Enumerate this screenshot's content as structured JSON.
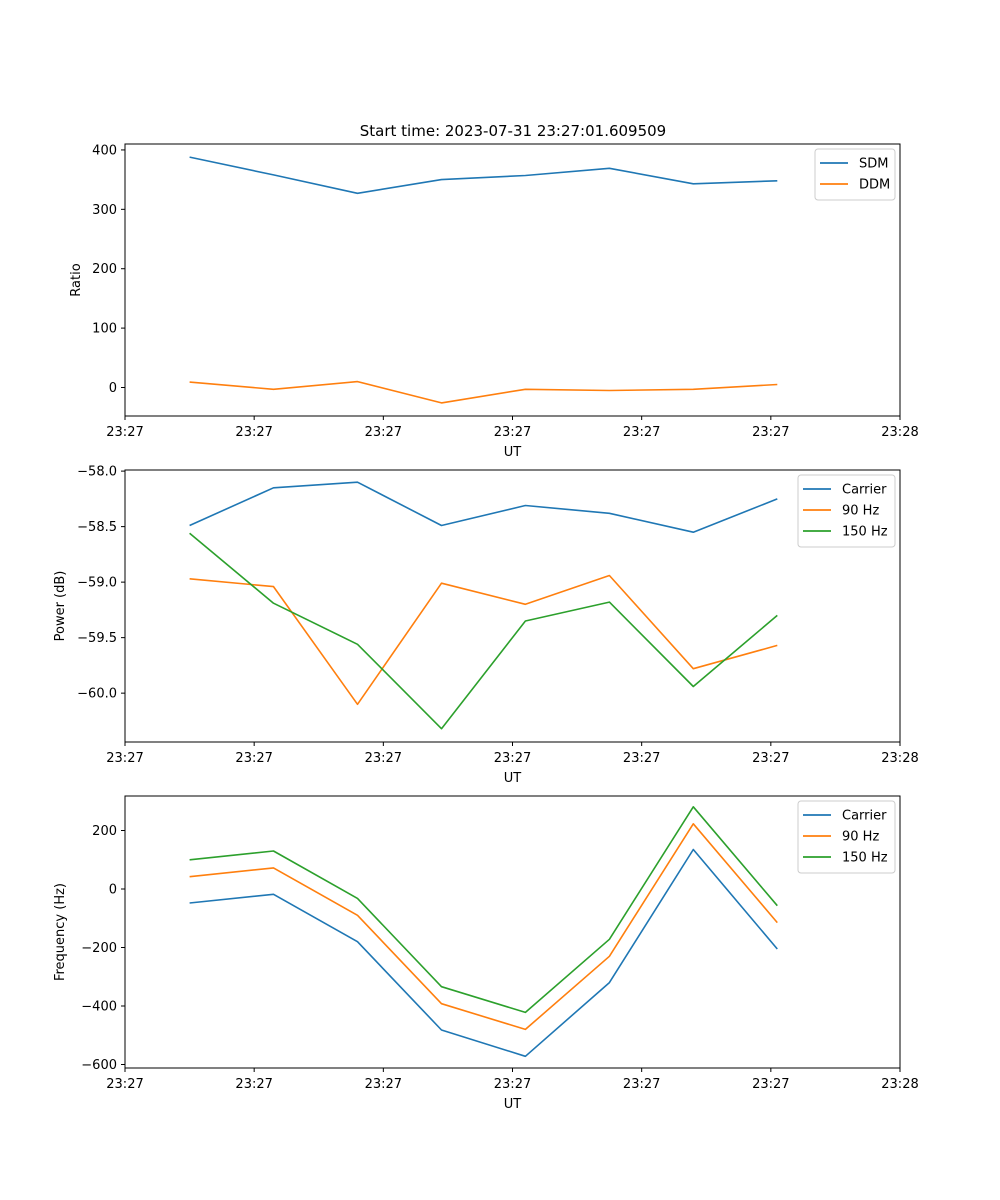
{
  "title": "Start time: 2023-07-31 23:27:01.609509",
  "chart_data": [
    {
      "type": "line",
      "title": "Start time: 2023-07-31 23:27:01.609509",
      "xlabel": "UT",
      "ylabel": "Ratio",
      "x": [
        0.5,
        1.15,
        1.8,
        2.45,
        3.1,
        3.75,
        4.4,
        5.05
      ],
      "xlim": [
        0,
        6
      ],
      "xticks": [
        0,
        1,
        2,
        3,
        4,
        5,
        6
      ],
      "xtick_labels": [
        "23:27",
        "23:27",
        "23:27",
        "23:27",
        "23:27",
        "23:27",
        "23:28"
      ],
      "ylim": [
        -48,
        410
      ],
      "yticks": [
        0,
        100,
        200,
        300,
        400
      ],
      "ytick_labels": [
        "0",
        "100",
        "200",
        "300",
        "400"
      ],
      "legend_position": "top-right",
      "series": [
        {
          "name": "SDM",
          "color": "#1f77b4",
          "values": [
            388,
            358,
            327,
            350,
            357,
            369,
            343,
            348
          ]
        },
        {
          "name": "DDM",
          "color": "#ff7f0e",
          "values": [
            9,
            -3,
            10,
            -26,
            -3,
            -5,
            -3,
            5
          ]
        }
      ]
    },
    {
      "type": "line",
      "xlabel": "UT",
      "ylabel": "Power (dB)",
      "x": [
        0.5,
        1.15,
        1.8,
        2.45,
        3.1,
        3.75,
        4.4,
        5.05
      ],
      "xlim": [
        0,
        6
      ],
      "xticks": [
        0,
        1,
        2,
        3,
        4,
        5,
        6
      ],
      "xtick_labels": [
        "23:27",
        "23:27",
        "23:27",
        "23:27",
        "23:27",
        "23:27",
        "23:28"
      ],
      "ylim": [
        -60.44,
        -57.99
      ],
      "yticks": [
        -58.0,
        -58.5,
        -59.0,
        -59.5,
        -60.0
      ],
      "ytick_labels": [
        "−58.0",
        "−58.5",
        "−59.0",
        "−59.5",
        "−60.0"
      ],
      "legend_position": "top-right",
      "series": [
        {
          "name": "Carrier",
          "color": "#1f77b4",
          "values": [
            -58.49,
            -58.15,
            -58.1,
            -58.49,
            -58.31,
            -58.38,
            -58.55,
            -58.25
          ]
        },
        {
          "name": "90 Hz",
          "color": "#ff7f0e",
          "values": [
            -58.97,
            -59.04,
            -60.1,
            -59.01,
            -59.2,
            -58.94,
            -59.78,
            -59.57
          ]
        },
        {
          "name": "150 Hz",
          "color": "#2ca02c",
          "values": [
            -58.56,
            -59.19,
            -59.56,
            -60.32,
            -59.35,
            -59.18,
            -59.94,
            -59.3
          ]
        }
      ]
    },
    {
      "type": "line",
      "xlabel": "UT",
      "ylabel": "Frequency (Hz)",
      "x": [
        0.5,
        1.15,
        1.8,
        2.45,
        3.1,
        3.75,
        4.4,
        5.05
      ],
      "xlim": [
        0,
        6
      ],
      "xticks": [
        0,
        1,
        2,
        3,
        4,
        5,
        6
      ],
      "xtick_labels": [
        "23:27",
        "23:27",
        "23:27",
        "23:27",
        "23:27",
        "23:27",
        "23:28"
      ],
      "ylim": [
        -612,
        318
      ],
      "yticks": [
        200,
        0,
        -200,
        -400,
        -600
      ],
      "ytick_labels": [
        "200",
        "0",
        "−200",
        "−400",
        "−600"
      ],
      "legend_position": "top-right",
      "series": [
        {
          "name": "Carrier",
          "color": "#1f77b4",
          "values": [
            -48,
            -18,
            -180,
            -482,
            -572,
            -320,
            135,
            -205
          ]
        },
        {
          "name": "90 Hz",
          "color": "#ff7f0e",
          "values": [
            42,
            72,
            -90,
            -392,
            -480,
            -230,
            223,
            -115
          ]
        },
        {
          "name": "150 Hz",
          "color": "#2ca02c",
          "values": [
            100,
            130,
            -32,
            -334,
            -422,
            -172,
            281,
            -57
          ]
        }
      ]
    }
  ]
}
